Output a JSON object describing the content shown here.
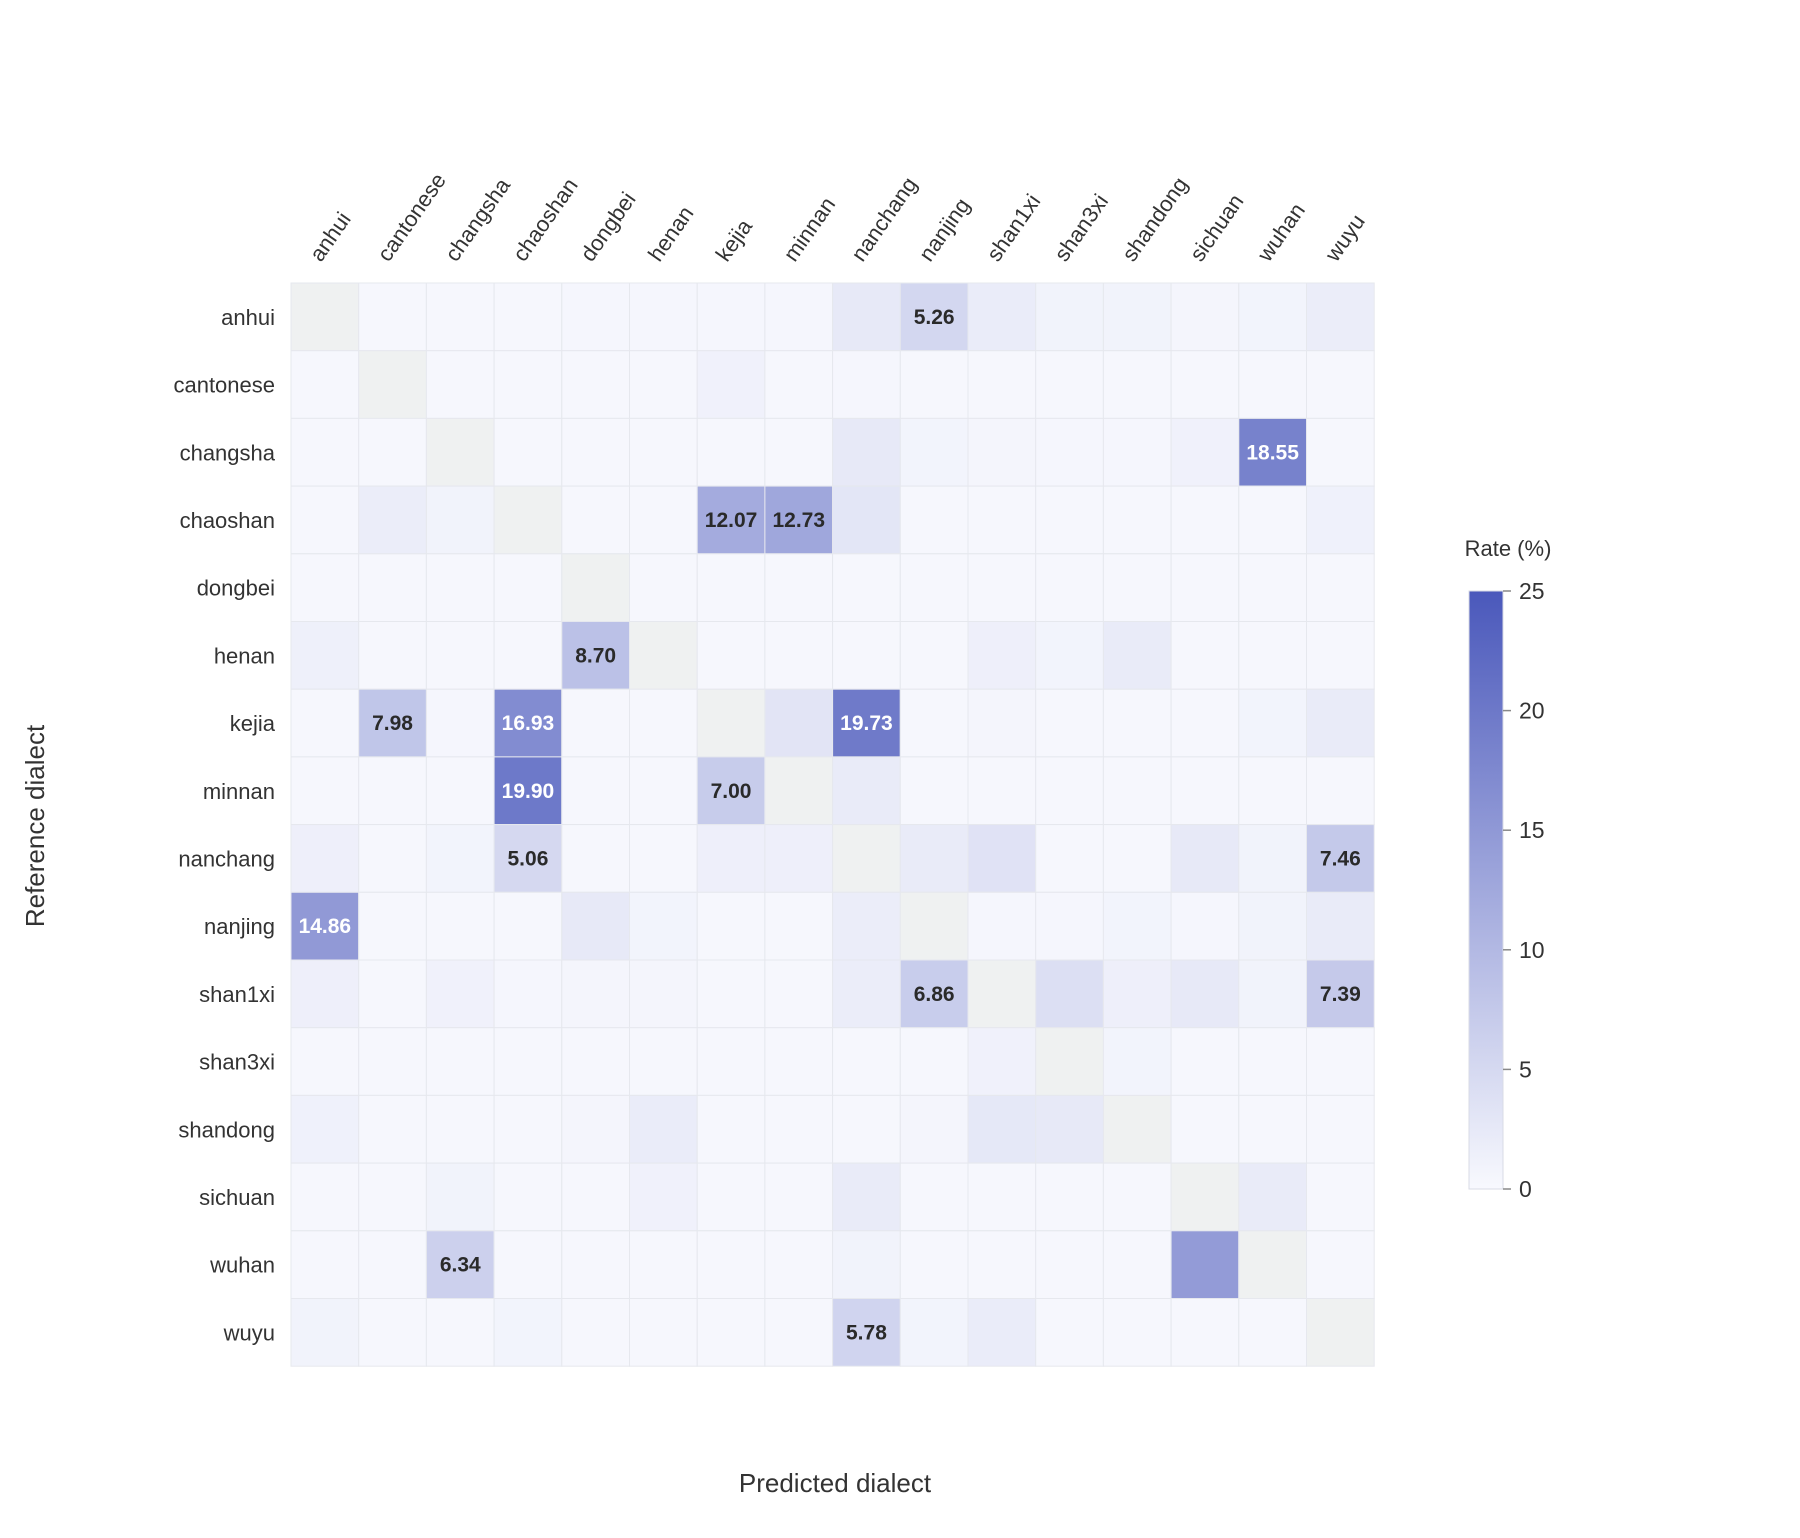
{
  "chart_data": {
    "type": "heatmap",
    "xlabel": "Predicted dialect",
    "ylabel": "Reference dialect",
    "x_categories": [
      "anhui",
      "cantonese",
      "changsha",
      "chaoshan",
      "dongbei",
      "henan",
      "kejia",
      "minnan",
      "nanchang",
      "nanjing",
      "shan1xi",
      "shan3xi",
      "shandong",
      "sichuan",
      "wuhan",
      "wuyu"
    ],
    "y_categories": [
      "anhui",
      "cantonese",
      "changsha",
      "chaoshan",
      "dongbei",
      "henan",
      "kejia",
      "minnan",
      "nanchang",
      "nanjing",
      "shan1xi",
      "shan3xi",
      "shandong",
      "sichuan",
      "wuhan",
      "wuyu"
    ],
    "values": [
      [
        null,
        0.3,
        0.3,
        0.3,
        0.4,
        0.4,
        0.5,
        0.4,
        2.5,
        5.26,
        2.0,
        1.0,
        1.0,
        0.6,
        0.8,
        1.8
      ],
      [
        0.3,
        null,
        0.3,
        0.3,
        0.3,
        0.3,
        1.2,
        0.3,
        0.4,
        0.3,
        0.3,
        0.3,
        0.3,
        0.3,
        0.3,
        0.3
      ],
      [
        0.3,
        0.3,
        null,
        0.3,
        0.3,
        0.3,
        0.3,
        0.3,
        2.5,
        0.8,
        0.6,
        0.4,
        0.4,
        1.2,
        18.55,
        0.3
      ],
      [
        0.3,
        1.8,
        1.0,
        null,
        0.3,
        0.3,
        12.07,
        12.73,
        3.0,
        0.3,
        0.3,
        0.3,
        0.3,
        0.3,
        0.3,
        1.3
      ],
      [
        0.3,
        0.3,
        0.3,
        0.3,
        null,
        0.3,
        0.3,
        0.3,
        0.3,
        0.3,
        0.3,
        0.3,
        0.3,
        0.3,
        0.3,
        0.3
      ],
      [
        1.4,
        0.3,
        0.3,
        0.3,
        8.7,
        null,
        0.3,
        0.3,
        0.3,
        0.3,
        1.5,
        0.8,
        2.2,
        0.3,
        0.3,
        0.3
      ],
      [
        0.3,
        7.98,
        0.5,
        16.93,
        0.3,
        0.3,
        null,
        3.2,
        19.73,
        0.3,
        0.6,
        0.3,
        0.3,
        0.3,
        0.8,
        2.2
      ],
      [
        0.3,
        0.3,
        0.3,
        19.9,
        0.3,
        0.3,
        7.0,
        null,
        2.2,
        0.3,
        0.3,
        0.3,
        0.3,
        0.3,
        0.3,
        0.3
      ],
      [
        1.5,
        0.3,
        0.8,
        5.06,
        0.3,
        0.3,
        1.5,
        1.5,
        null,
        2.2,
        3.5,
        0.3,
        0.3,
        2.5,
        1.0,
        7.46
      ],
      [
        14.86,
        0.3,
        0.3,
        0.3,
        2.5,
        0.8,
        0.3,
        0.3,
        1.8,
        null,
        0.4,
        0.4,
        0.8,
        0.4,
        1.0,
        2.2
      ],
      [
        1.5,
        0.3,
        1.2,
        0.4,
        0.6,
        0.6,
        0.3,
        0.3,
        1.8,
        6.86,
        null,
        4.0,
        1.5,
        2.5,
        1.0,
        7.39
      ],
      [
        0.3,
        0.3,
        0.3,
        0.3,
        0.3,
        0.3,
        0.3,
        0.3,
        0.3,
        0.3,
        1.2,
        null,
        0.8,
        0.3,
        0.3,
        0.3
      ],
      [
        1.3,
        0.3,
        0.3,
        0.3,
        0.6,
        2.0,
        0.3,
        0.3,
        0.3,
        0.6,
        2.7,
        2.5,
        null,
        0.3,
        0.3,
        0.3
      ],
      [
        0.3,
        0.3,
        1.0,
        0.3,
        0.3,
        1.2,
        0.3,
        0.3,
        2.2,
        0.3,
        0.3,
        0.3,
        0.3,
        null,
        2.2,
        0.3
      ],
      [
        0.3,
        0.3,
        6.34,
        0.3,
        0.3,
        0.3,
        0.3,
        0.3,
        1.0,
        0.3,
        0.3,
        0.3,
        0.3,
        14.52,
        null,
        0.3
      ],
      [
        1.0,
        0.3,
        0.3,
        0.8,
        0.3,
        0.3,
        0.3,
        0.3,
        5.78,
        0.8,
        2.0,
        0.3,
        0.3,
        0.3,
        0.3,
        null
      ]
    ],
    "annotated_cells": [
      {
        "row": 0,
        "col": 9,
        "label": "5.26"
      },
      {
        "row": 2,
        "col": 14,
        "label": "18.55"
      },
      {
        "row": 3,
        "col": 6,
        "label": "12.07"
      },
      {
        "row": 3,
        "col": 7,
        "label": "12.73"
      },
      {
        "row": 5,
        "col": 4,
        "label": "8.70"
      },
      {
        "row": 6,
        "col": 1,
        "label": "7.98"
      },
      {
        "row": 6,
        "col": 3,
        "label": "16.93"
      },
      {
        "row": 6,
        "col": 8,
        "label": "19.73"
      },
      {
        "row": 7,
        "col": 3,
        "label": "19.90"
      },
      {
        "row": 7,
        "col": 6,
        "label": "7.00"
      },
      {
        "row": 8,
        "col": 3,
        "label": "5.06"
      },
      {
        "row": 8,
        "col": 15,
        "label": "7.46"
      },
      {
        "row": 9,
        "col": 0,
        "label": "14.86"
      },
      {
        "row": 10,
        "col": 9,
        "label": "6.86"
      },
      {
        "row": 10,
        "col": 15,
        "label": "7.39"
      },
      {
        "row": 14,
        "col": 2,
        "label": "6.34"
      },
      {
        "row": 15,
        "col": 8,
        "label": "5.78"
      }
    ],
    "colorbar": {
      "title": "Rate (%)",
      "range": [
        0,
        25
      ],
      "ticks": [
        "0",
        "5",
        "10",
        "15",
        "20",
        "25"
      ],
      "position": "right"
    },
    "colors": {
      "low": "#f8f9fe",
      "high": "#4a58bb",
      "diagonal": "#eff1f1",
      "cell_border": "#e6e8ee"
    },
    "grid": false
  }
}
